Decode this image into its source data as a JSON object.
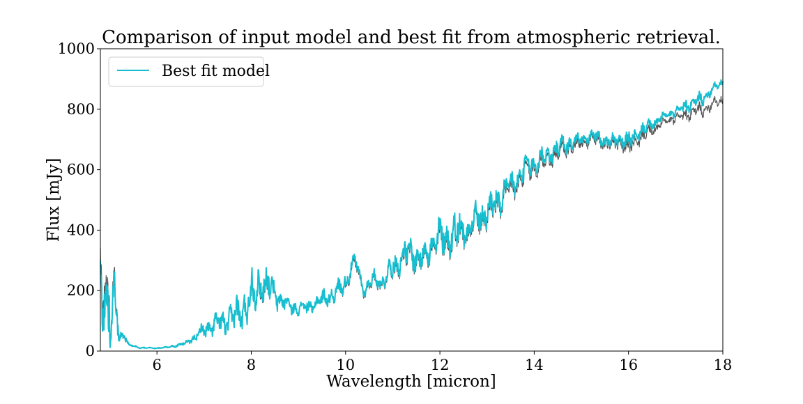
{
  "chart_data": {
    "type": "line",
    "title": "Comparison of input model and best fit from atmospheric retrieval.",
    "xlabel": "Wavelength [micron]",
    "ylabel": "Flux [mJy]",
    "xlim": [
      4.8,
      18
    ],
    "ylim": [
      0,
      1000
    ],
    "xticks": [
      6,
      8,
      10,
      12,
      14,
      16,
      18
    ],
    "yticks": [
      0,
      200,
      400,
      600,
      800,
      1000
    ],
    "grid": false,
    "legend_position": "upper-left",
    "legend": [
      "Best fit model"
    ],
    "series": [
      {
        "name": "Best fit model",
        "color": "#17becf",
        "in_legend": true,
        "x": [
          4.8,
          4.9,
          5.0,
          5.1,
          5.2,
          5.3,
          5.4,
          5.6,
          5.8,
          6.0,
          6.2,
          6.4,
          6.6,
          6.8,
          7.0,
          7.2,
          7.4,
          7.6,
          7.8,
          8.0,
          8.2,
          8.4,
          8.6,
          8.8,
          9.0,
          9.3,
          9.6,
          9.8,
          10.0,
          10.2,
          10.4,
          10.6,
          10.8,
          11.0,
          11.2,
          11.4,
          11.6,
          11.8,
          12.0,
          12.2,
          12.4,
          12.6,
          12.8,
          13.0,
          13.2,
          13.4,
          13.6,
          13.8,
          14.0,
          14.2,
          14.4,
          14.6,
          14.8,
          15.0,
          15.2,
          15.4,
          15.6,
          15.8,
          16.0,
          16.2,
          16.4,
          16.6,
          16.8,
          17.0,
          17.2,
          17.4,
          17.6,
          17.8,
          18.0
        ],
        "y": [
          170,
          200,
          120,
          180,
          40,
          60,
          20,
          12,
          10,
          10,
          12,
          18,
          25,
          45,
          70,
          85,
          95,
          110,
          130,
          180,
          230,
          210,
          170,
          150,
          140,
          150,
          180,
          190,
          230,
          300,
          200,
          240,
          230,
          280,
          310,
          330,
          300,
          350,
          370,
          380,
          400,
          410,
          440,
          460,
          490,
          530,
          560,
          600,
          620,
          640,
          660,
          680,
          690,
          700,
          710,
          705,
          690,
          700,
          690,
          720,
          740,
          760,
          780,
          790,
          810,
          820,
          840,
          870,
          890
        ],
        "amplitude": [
          300,
          280,
          250,
          150,
          60,
          30,
          10,
          6,
          5,
          5,
          6,
          10,
          15,
          30,
          60,
          80,
          90,
          120,
          140,
          190,
          150,
          120,
          80,
          60,
          50,
          60,
          70,
          80,
          70,
          60,
          50,
          60,
          70,
          90,
          110,
          120,
          110,
          130,
          150,
          140,
          150,
          130,
          120,
          130,
          120,
          110,
          110,
          100,
          100,
          90,
          80,
          70,
          60,
          50,
          50,
          50,
          50,
          60,
          80,
          60,
          50,
          40,
          30,
          40,
          50,
          50,
          60,
          40,
          30
        ]
      },
      {
        "name": "",
        "color": "#555555",
        "in_legend": false,
        "x": [
          4.8,
          4.9,
          5.0,
          5.1,
          5.2,
          5.3,
          5.4,
          5.6,
          5.8,
          6.0,
          6.2,
          6.4,
          6.6,
          6.8,
          7.0,
          7.2,
          7.4,
          7.6,
          7.8,
          8.0,
          8.2,
          8.4,
          8.6,
          8.8,
          9.0,
          9.3,
          9.6,
          9.8,
          10.0,
          10.2,
          10.4,
          10.6,
          10.8,
          11.0,
          11.2,
          11.4,
          11.6,
          11.8,
          12.0,
          12.2,
          12.4,
          12.6,
          12.8,
          13.0,
          13.2,
          13.4,
          13.6,
          13.8,
          14.0,
          14.2,
          14.4,
          14.6,
          14.8,
          15.0,
          15.2,
          15.4,
          15.6,
          15.8,
          16.0,
          16.2,
          16.4,
          16.6,
          16.8,
          17.0,
          17.2,
          17.4,
          17.6,
          17.8,
          18.0
        ],
        "y": [
          200,
          230,
          140,
          190,
          45,
          55,
          20,
          12,
          10,
          10,
          12,
          18,
          25,
          45,
          70,
          85,
          95,
          110,
          130,
          175,
          220,
          205,
          170,
          150,
          140,
          150,
          180,
          190,
          225,
          290,
          195,
          235,
          225,
          275,
          300,
          320,
          295,
          340,
          360,
          370,
          390,
          400,
          430,
          450,
          480,
          515,
          545,
          585,
          605,
          625,
          645,
          665,
          675,
          685,
          700,
          695,
          680,
          690,
          670,
          700,
          720,
          740,
          760,
          770,
          780,
          790,
          800,
          820,
          830
        ],
        "amplitude": [
          330,
          300,
          260,
          160,
          60,
          30,
          10,
          6,
          5,
          5,
          6,
          10,
          15,
          30,
          55,
          75,
          85,
          110,
          130,
          170,
          140,
          110,
          80,
          60,
          50,
          60,
          70,
          80,
          70,
          60,
          50,
          60,
          70,
          90,
          105,
          115,
          105,
          125,
          140,
          135,
          145,
          125,
          115,
          125,
          115,
          105,
          105,
          95,
          95,
          85,
          75,
          65,
          55,
          50,
          50,
          50,
          50,
          60,
          80,
          60,
          50,
          40,
          35,
          40,
          50,
          55,
          60,
          50,
          40
        ]
      }
    ]
  }
}
